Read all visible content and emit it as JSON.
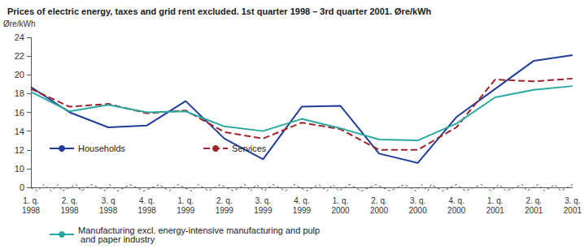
{
  "chart_data": {
    "type": "line",
    "title": "Prices of electric energy, taxes and grid rent excluded. 1st quarter 1998 – 3rd quarter 2001. Øre/kWh",
    "y_label": "Øre/kWh",
    "categories": [
      "1. q.\n1998",
      "2. q.\n1998",
      "3. q\n1998",
      "4. q.\n1998",
      "1. q.\n1999",
      "2. q.\n1999",
      "3. q.\n1999",
      "4. q.\n1999",
      "1. q.\n2000",
      "2. q.\n2000",
      "3. q.\n2000",
      "4. q.\n2000",
      "1. q.\n2001",
      "2. q.\n2001",
      "3. q.\n2001"
    ],
    "series": [
      {
        "name": "Households",
        "color": "#1f3d99",
        "line_style": "solid",
        "values": [
          18.7,
          16.0,
          14.4,
          14.6,
          17.2,
          13.2,
          11.0,
          16.6,
          16.7,
          11.6,
          10.6,
          15.5,
          18.5,
          21.5,
          22.1
        ]
      },
      {
        "name": "Services",
        "color": "#a0232a",
        "line_style": "dashed",
        "values": [
          18.5,
          16.6,
          16.9,
          15.9,
          16.2,
          13.9,
          13.2,
          14.9,
          14.2,
          12.0,
          12.0,
          14.4,
          19.5,
          19.3,
          19.6
        ]
      },
      {
        "name": "Manufacturing excl. energy-intensive manufacturing and pulp and paper industry",
        "color": "#2aa8a0",
        "line_style": "solid",
        "values": [
          18.2,
          16.1,
          16.8,
          16.0,
          16.1,
          14.5,
          14.0,
          15.3,
          14.3,
          13.1,
          13.0,
          14.8,
          17.6,
          18.4,
          18.8
        ]
      }
    ],
    "ylim": [
      0,
      24
    ],
    "yticks": [
      0,
      10,
      12,
      14,
      16,
      18,
      20,
      22,
      24
    ],
    "grid": false,
    "legend": "bottom"
  }
}
